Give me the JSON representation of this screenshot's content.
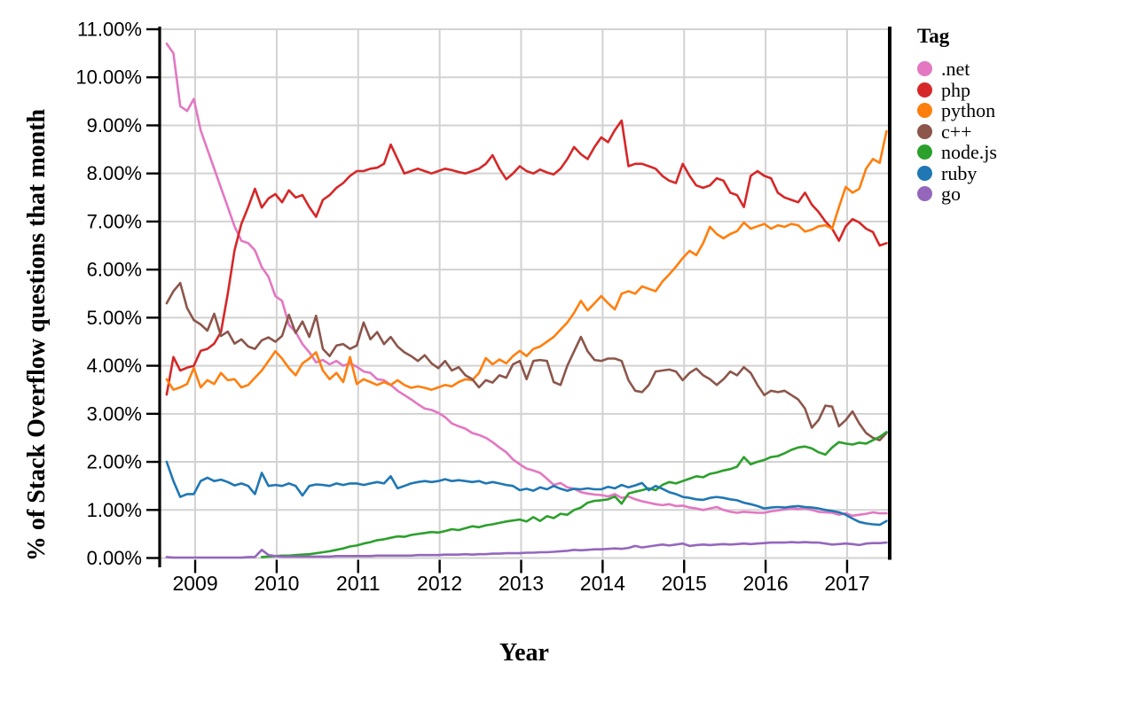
{
  "chart_data": {
    "type": "line",
    "title": "",
    "grid": true,
    "background": "#ffffff",
    "grid_color": "#d2d2d2",
    "axis_color": "#000000",
    "x_axis": {
      "title": "Year",
      "range": [
        2008.575,
        2017.512
      ],
      "ticks": [
        2009,
        2010,
        2011,
        2012,
        2013,
        2014,
        2015,
        2016,
        2017
      ],
      "tick_labels": [
        "2009",
        "2010",
        "2011",
        "2012",
        "2013",
        "2014",
        "2015",
        "2016",
        "2017"
      ]
    },
    "y_axis": {
      "title": "% of Stack Overflow questions that month",
      "range": [
        0,
        11
      ],
      "ticks": [
        0,
        1,
        2,
        3,
        4,
        5,
        6,
        7,
        8,
        9,
        10,
        11
      ],
      "tick_labels": [
        "0.00%",
        "1.00%",
        "2.00%",
        "3.00%",
        "4.00%",
        "5.00%",
        "6.00%",
        "7.00%",
        "8.00%",
        "9.00%",
        "10.00%",
        "11.00%"
      ]
    },
    "legend": {
      "title": "Tag",
      "position": "right"
    },
    "x_start": 2008.65,
    "x_step": 0.083333,
    "series": [
      {
        "name": ".net",
        "color": "#e377c2",
        "values": [
          10.7,
          10.5,
          9.4,
          9.3,
          9.55,
          8.9,
          8.5,
          8.1,
          7.7,
          7.3,
          6.9,
          6.6,
          6.55,
          6.4,
          6.05,
          5.85,
          5.45,
          5.35,
          4.85,
          4.7,
          4.45,
          4.28,
          4.07,
          4.12,
          4.03,
          4.1,
          4.0,
          4.05,
          3.98,
          3.88,
          3.85,
          3.72,
          3.7,
          3.6,
          3.48,
          3.39,
          3.3,
          3.2,
          3.11,
          3.08,
          3.02,
          2.93,
          2.8,
          2.74,
          2.69,
          2.6,
          2.56,
          2.5,
          2.41,
          2.3,
          2.2,
          2.05,
          1.95,
          1.86,
          1.82,
          1.77,
          1.65,
          1.52,
          1.56,
          1.47,
          1.44,
          1.37,
          1.34,
          1.32,
          1.31,
          1.28,
          1.33,
          1.25,
          1.28,
          1.22,
          1.18,
          1.15,
          1.12,
          1.1,
          1.12,
          1.08,
          1.09,
          1.05,
          1.03,
          1.0,
          1.03,
          1.06,
          1.0,
          0.96,
          0.94,
          0.96,
          0.95,
          0.94,
          0.94,
          0.97,
          0.99,
          1.01,
          1.03,
          1.02,
          1.03,
          1.0,
          0.96,
          0.95,
          0.94,
          0.9,
          0.93,
          0.88,
          0.9,
          0.92,
          0.95,
          0.93,
          0.93
        ]
      },
      {
        "name": "php",
        "color": "#d62728",
        "values": [
          3.4,
          4.18,
          3.9,
          3.96,
          4.0,
          4.31,
          4.35,
          4.46,
          4.7,
          5.5,
          6.4,
          6.95,
          7.3,
          7.68,
          7.29,
          7.48,
          7.57,
          7.4,
          7.65,
          7.5,
          7.55,
          7.3,
          7.1,
          7.45,
          7.55,
          7.7,
          7.8,
          7.95,
          8.05,
          8.05,
          8.1,
          8.12,
          8.2,
          8.6,
          8.3,
          8.0,
          8.05,
          8.1,
          8.05,
          8.0,
          8.05,
          8.1,
          8.07,
          8.03,
          8.0,
          8.05,
          8.1,
          8.2,
          8.38,
          8.1,
          7.88,
          8.0,
          8.15,
          8.05,
          8.0,
          8.08,
          8.02,
          7.98,
          8.1,
          8.3,
          8.55,
          8.4,
          8.3,
          8.55,
          8.75,
          8.65,
          8.9,
          9.1,
          8.15,
          8.2,
          8.2,
          8.15,
          8.1,
          7.95,
          7.85,
          7.8,
          8.2,
          7.95,
          7.75,
          7.7,
          7.75,
          7.9,
          7.85,
          7.6,
          7.55,
          7.3,
          7.95,
          8.05,
          7.95,
          7.9,
          7.6,
          7.5,
          7.45,
          7.4,
          7.6,
          7.35,
          7.2,
          7.0,
          6.85,
          6.6,
          6.9,
          7.05,
          6.98,
          6.85,
          6.78,
          6.5,
          6.55
        ]
      },
      {
        "name": "python",
        "color": "#ff7f0e",
        "values": [
          3.72,
          3.5,
          3.55,
          3.62,
          3.95,
          3.55,
          3.7,
          3.62,
          3.85,
          3.7,
          3.72,
          3.55,
          3.6,
          3.75,
          3.9,
          4.1,
          4.3,
          4.15,
          3.95,
          3.8,
          4.05,
          4.15,
          4.28,
          3.9,
          3.72,
          3.85,
          3.66,
          4.18,
          3.62,
          3.72,
          3.66,
          3.6,
          3.66,
          3.6,
          3.7,
          3.6,
          3.54,
          3.57,
          3.54,
          3.5,
          3.55,
          3.6,
          3.57,
          3.66,
          3.72,
          3.7,
          3.85,
          4.16,
          4.03,
          4.13,
          4.05,
          4.2,
          4.31,
          4.2,
          4.35,
          4.4,
          4.5,
          4.6,
          4.75,
          4.9,
          5.1,
          5.35,
          5.15,
          5.3,
          5.45,
          5.3,
          5.17,
          5.5,
          5.55,
          5.5,
          5.65,
          5.6,
          5.55,
          5.75,
          5.9,
          6.06,
          6.24,
          6.39,
          6.3,
          6.55,
          6.89,
          6.74,
          6.65,
          6.74,
          6.8,
          6.98,
          6.85,
          6.9,
          6.95,
          6.85,
          6.92,
          6.89,
          6.95,
          6.92,
          6.79,
          6.83,
          6.9,
          6.92,
          6.85,
          7.3,
          7.72,
          7.6,
          7.68,
          8.1,
          8.3,
          8.22,
          8.88
        ]
      },
      {
        "name": "c++",
        "color": "#8c564b",
        "values": [
          5.3,
          5.55,
          5.72,
          5.2,
          4.95,
          4.86,
          4.73,
          5.08,
          4.62,
          4.71,
          4.46,
          4.55,
          4.4,
          4.35,
          4.53,
          4.59,
          4.5,
          4.62,
          5.06,
          4.68,
          4.92,
          4.6,
          5.04,
          4.35,
          4.2,
          4.42,
          4.45,
          4.35,
          4.42,
          4.9,
          4.55,
          4.7,
          4.45,
          4.6,
          4.4,
          4.28,
          4.2,
          4.1,
          4.22,
          4.05,
          3.95,
          4.1,
          3.9,
          3.97,
          3.8,
          3.72,
          3.55,
          3.7,
          3.65,
          3.8,
          3.75,
          4.03,
          4.1,
          3.72,
          4.1,
          4.12,
          4.1,
          3.66,
          3.6,
          4.0,
          4.3,
          4.6,
          4.3,
          4.12,
          4.1,
          4.15,
          4.15,
          4.1,
          3.7,
          3.48,
          3.45,
          3.6,
          3.88,
          3.9,
          3.92,
          3.88,
          3.7,
          3.85,
          3.94,
          3.8,
          3.72,
          3.6,
          3.72,
          3.88,
          3.8,
          3.97,
          3.85,
          3.6,
          3.39,
          3.48,
          3.45,
          3.48,
          3.39,
          3.3,
          3.11,
          2.71,
          2.87,
          3.17,
          3.15,
          2.74,
          2.87,
          3.05,
          2.8,
          2.6,
          2.5,
          2.45,
          2.6
        ]
      },
      {
        "name": "node.js",
        "color": "#2ca02c",
        "values": [
          null,
          null,
          null,
          null,
          null,
          null,
          null,
          null,
          null,
          null,
          null,
          null,
          null,
          null,
          0.02,
          0.03,
          0.04,
          0.05,
          0.05,
          0.06,
          0.07,
          0.08,
          0.1,
          0.12,
          0.14,
          0.17,
          0.2,
          0.24,
          0.26,
          0.3,
          0.33,
          0.37,
          0.39,
          0.42,
          0.45,
          0.44,
          0.48,
          0.5,
          0.52,
          0.54,
          0.53,
          0.56,
          0.6,
          0.58,
          0.62,
          0.66,
          0.64,
          0.68,
          0.7,
          0.73,
          0.76,
          0.78,
          0.8,
          0.76,
          0.85,
          0.77,
          0.87,
          0.83,
          0.92,
          0.9,
          1.0,
          1.05,
          1.15,
          1.19,
          1.2,
          1.22,
          1.28,
          1.13,
          1.34,
          1.38,
          1.41,
          1.45,
          1.41,
          1.52,
          1.58,
          1.55,
          1.6,
          1.65,
          1.7,
          1.68,
          1.75,
          1.78,
          1.82,
          1.85,
          1.9,
          2.1,
          1.95,
          2.0,
          2.04,
          2.1,
          2.12,
          2.18,
          2.25,
          2.3,
          2.32,
          2.28,
          2.2,
          2.15,
          2.3,
          2.41,
          2.38,
          2.36,
          2.4,
          2.38,
          2.45,
          2.52,
          2.62
        ]
      },
      {
        "name": "ruby",
        "color": "#1f77b4",
        "values": [
          2.0,
          1.6,
          1.27,
          1.33,
          1.33,
          1.6,
          1.67,
          1.6,
          1.63,
          1.58,
          1.51,
          1.55,
          1.5,
          1.33,
          1.77,
          1.5,
          1.52,
          1.5,
          1.55,
          1.5,
          1.3,
          1.5,
          1.53,
          1.52,
          1.5,
          1.55,
          1.52,
          1.55,
          1.55,
          1.52,
          1.55,
          1.58,
          1.55,
          1.7,
          1.45,
          1.5,
          1.55,
          1.58,
          1.6,
          1.58,
          1.6,
          1.64,
          1.6,
          1.62,
          1.6,
          1.58,
          1.6,
          1.55,
          1.58,
          1.55,
          1.52,
          1.5,
          1.41,
          1.44,
          1.4,
          1.47,
          1.43,
          1.5,
          1.44,
          1.4,
          1.44,
          1.43,
          1.45,
          1.43,
          1.43,
          1.48,
          1.45,
          1.52,
          1.47,
          1.51,
          1.56,
          1.41,
          1.5,
          1.44,
          1.37,
          1.33,
          1.27,
          1.25,
          1.22,
          1.21,
          1.25,
          1.27,
          1.25,
          1.22,
          1.2,
          1.15,
          1.12,
          1.08,
          1.03,
          1.05,
          1.06,
          1.05,
          1.07,
          1.08,
          1.06,
          1.05,
          1.03,
          1.0,
          0.98,
          0.95,
          0.9,
          0.82,
          0.75,
          0.72,
          0.7,
          0.69,
          0.77
        ]
      },
      {
        "name": "go",
        "color": "#9467bd",
        "values": [
          0.02,
          0.01,
          0.01,
          0.01,
          0.01,
          0.01,
          0.01,
          0.01,
          0.01,
          0.01,
          0.01,
          0.01,
          0.02,
          0.02,
          0.17,
          0.06,
          0.04,
          0.03,
          0.03,
          0.03,
          0.03,
          0.03,
          0.03,
          0.03,
          0.03,
          0.04,
          0.04,
          0.04,
          0.04,
          0.04,
          0.04,
          0.05,
          0.05,
          0.05,
          0.05,
          0.05,
          0.05,
          0.06,
          0.06,
          0.06,
          0.06,
          0.07,
          0.07,
          0.07,
          0.08,
          0.07,
          0.08,
          0.08,
          0.09,
          0.09,
          0.1,
          0.1,
          0.1,
          0.11,
          0.11,
          0.12,
          0.12,
          0.13,
          0.14,
          0.15,
          0.17,
          0.16,
          0.17,
          0.18,
          0.18,
          0.19,
          0.2,
          0.19,
          0.21,
          0.25,
          0.22,
          0.24,
          0.26,
          0.28,
          0.26,
          0.28,
          0.3,
          0.25,
          0.27,
          0.28,
          0.27,
          0.28,
          0.29,
          0.28,
          0.29,
          0.3,
          0.29,
          0.3,
          0.31,
          0.32,
          0.32,
          0.32,
          0.33,
          0.32,
          0.33,
          0.32,
          0.32,
          0.3,
          0.28,
          0.29,
          0.3,
          0.29,
          0.27,
          0.3,
          0.31,
          0.31,
          0.32
        ]
      }
    ]
  }
}
